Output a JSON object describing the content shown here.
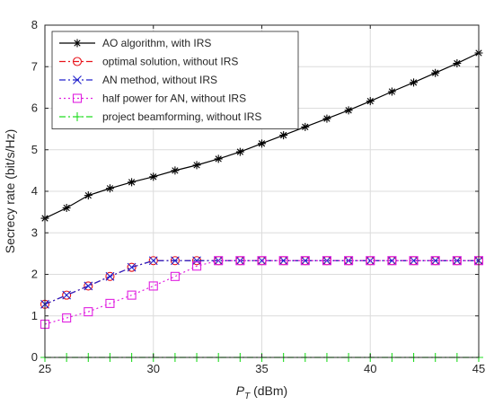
{
  "chart_data": {
    "type": "line",
    "title": "",
    "xlabel": "P",
    "xlabel_sub": "T",
    "xlabel_unit": " (dBm)",
    "ylabel": "Secrecy rate (bit/s/Hz)",
    "xlim": [
      25,
      45
    ],
    "ylim": [
      0,
      8
    ],
    "xticks": [
      25,
      30,
      35,
      40,
      45
    ],
    "yticks": [
      0,
      1,
      2,
      3,
      4,
      5,
      6,
      7,
      8
    ],
    "grid": true,
    "legend_position": "top-left",
    "x": [
      25,
      26,
      27,
      28,
      29,
      30,
      31,
      32,
      33,
      34,
      35,
      36,
      37,
      38,
      39,
      40,
      41,
      42,
      43,
      44,
      45
    ],
    "series": [
      {
        "name": "AO algorithm, with IRS",
        "color": "#000000",
        "line": "solid",
        "marker": "asterisk",
        "values": [
          3.35,
          3.6,
          3.9,
          4.07,
          4.22,
          4.35,
          4.5,
          4.63,
          4.78,
          4.95,
          5.15,
          5.35,
          5.55,
          5.75,
          5.95,
          6.17,
          6.4,
          6.62,
          6.85,
          7.08,
          7.33
        ]
      },
      {
        "name": "optimal solution, without IRS",
        "color": "#e8141c",
        "line": "dashdot",
        "marker": "circle",
        "values": [
          1.28,
          1.5,
          1.72,
          1.95,
          2.17,
          2.33,
          2.33,
          2.33,
          2.33,
          2.33,
          2.33,
          2.33,
          2.33,
          2.33,
          2.33,
          2.33,
          2.33,
          2.33,
          2.33,
          2.33,
          2.33
        ]
      },
      {
        "name": "AN method, without IRS",
        "color": "#2222cc",
        "line": "dashdot",
        "marker": "x",
        "values": [
          1.28,
          1.5,
          1.72,
          1.95,
          2.17,
          2.33,
          2.33,
          2.33,
          2.33,
          2.33,
          2.33,
          2.33,
          2.33,
          2.33,
          2.33,
          2.33,
          2.33,
          2.33,
          2.33,
          2.33,
          2.33
        ]
      },
      {
        "name": "half power for AN, without IRS",
        "color": "#e020e0",
        "line": "dotted",
        "marker": "square",
        "values": [
          0.8,
          0.95,
          1.1,
          1.3,
          1.5,
          1.72,
          1.95,
          2.2,
          2.33,
          2.33,
          2.33,
          2.33,
          2.33,
          2.33,
          2.33,
          2.33,
          2.33,
          2.33,
          2.33,
          2.33,
          2.33
        ]
      },
      {
        "name": "project beamforming, without IRS",
        "color": "#22dd22",
        "line": "dashdot",
        "marker": "plus",
        "values": [
          0,
          0,
          0,
          0,
          0,
          0,
          0,
          0,
          0,
          0,
          0,
          0,
          0,
          0,
          0,
          0,
          0,
          0,
          0,
          0,
          0
        ]
      }
    ]
  }
}
